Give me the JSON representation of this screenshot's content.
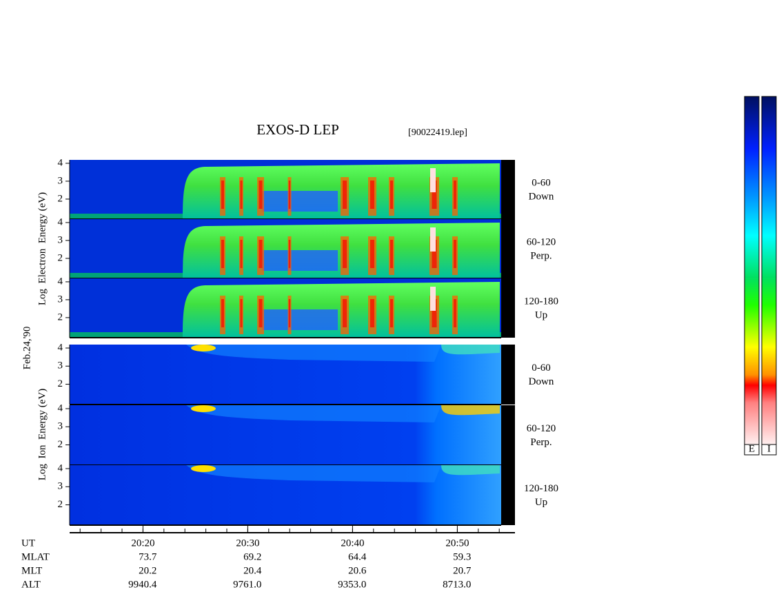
{
  "title": "EXOS-D LEP",
  "file": "[90022419.lep]",
  "date": "Feb.24,'90",
  "groups": [
    {
      "ylabel": "Log  Electron  Energy (eV)",
      "panels": [
        {
          "range": "0-60",
          "direction": "Down"
        },
        {
          "range": "60-120",
          "direction": "Perp."
        },
        {
          "range": "120-180",
          "direction": "Up"
        }
      ]
    },
    {
      "ylabel": "Log  Ion  Energy (eV)",
      "panels": [
        {
          "range": "0-60",
          "direction": "Down"
        },
        {
          "range": "60-120",
          "direction": "Perp."
        },
        {
          "range": "120-180",
          "direction": "Up"
        }
      ]
    }
  ],
  "ylim": [
    0.88,
    4.19
  ],
  "yticks": [
    2,
    3,
    4
  ],
  "xlim": [
    1213,
    1255.5
  ],
  "xticks": [
    {
      "value": 1220,
      "label": "20:20"
    },
    {
      "value": 1230,
      "label": "20:30"
    },
    {
      "value": 1240,
      "label": "20:40"
    },
    {
      "value": 1250,
      "label": "20:50"
    }
  ],
  "xminorticks": [
    1214,
    1216,
    1218,
    1220,
    1222,
    1224,
    1226,
    1228,
    1230,
    1232,
    1234,
    1236,
    1238,
    1240,
    1242,
    1244,
    1246,
    1248,
    1250,
    1252,
    1254
  ],
  "ephemeris": {
    "labels": [
      "UT",
      "MLAT",
      "MLT",
      "ALT"
    ],
    "rows": [
      [
        "73.7",
        "69.2",
        "64.4",
        "59.3"
      ],
      [
        "20.2",
        "20.4",
        "20.6",
        "20.7"
      ],
      [
        "9940.4",
        "9761.0",
        "9353.0",
        "8713.0"
      ]
    ]
  },
  "colorbar_labels": [
    "E",
    "I"
  ]
}
